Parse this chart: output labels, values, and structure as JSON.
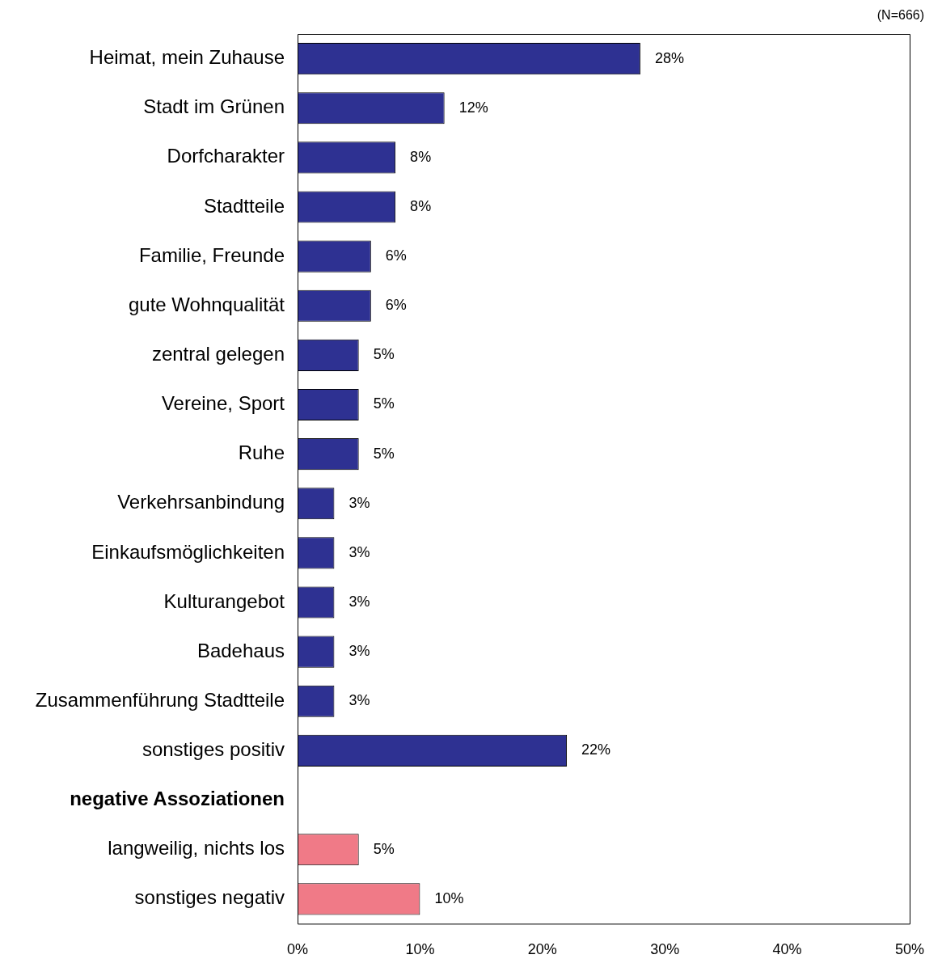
{
  "chart_data": {
    "type": "bar",
    "orientation": "horizontal",
    "categories": [
      "Heimat, mein Zuhause",
      "Stadt im Grünen",
      "Dorfcharakter",
      "Stadtteile",
      "Familie, Freunde",
      "gute Wohnqualität",
      "zentral gelegen",
      "Vereine, Sport",
      "Ruhe",
      "Verkehrsanbindung",
      "Einkaufsmöglichkeiten",
      "Kulturangebot",
      "Badehaus",
      "Zusammenführung Stadtteile",
      "sonstiges positiv",
      "negative Assoziationen",
      "langweilig, nichts los",
      "sonstiges negativ"
    ],
    "values": [
      28,
      12,
      8,
      8,
      6,
      6,
      5,
      5,
      5,
      3,
      3,
      3,
      3,
      3,
      22,
      null,
      5,
      10
    ],
    "value_labels": [
      "28%",
      "12%",
      "8%",
      "8%",
      "6%",
      "6%",
      "5%",
      "5%",
      "5%",
      "3%",
      "3%",
      "3%",
      "3%",
      "3%",
      "22%",
      null,
      "5%",
      "10%"
    ],
    "colors": [
      "#2e3192",
      "#2e3192",
      "#2e3192",
      "#2e3192",
      "#2e3192",
      "#2e3192",
      "#2e3192",
      "#2e3192",
      "#2e3192",
      "#2e3192",
      "#2e3192",
      "#2e3192",
      "#2e3192",
      "#2e3192",
      "#2e3192",
      "#2e3192",
      "#f07a87",
      "#f07a87"
    ],
    "xlim": [
      0,
      50
    ],
    "xticks": [
      {
        "value": 0,
        "label": "0%"
      },
      {
        "value": 10,
        "label": "10%"
      },
      {
        "value": 20,
        "label": "20%"
      },
      {
        "value": 30,
        "label": "30%"
      },
      {
        "value": 40,
        "label": "40%"
      },
      {
        "value": 50,
        "label": "50%"
      }
    ],
    "grid": false,
    "legend": false,
    "annotations": [
      "(N=666)"
    ]
  }
}
